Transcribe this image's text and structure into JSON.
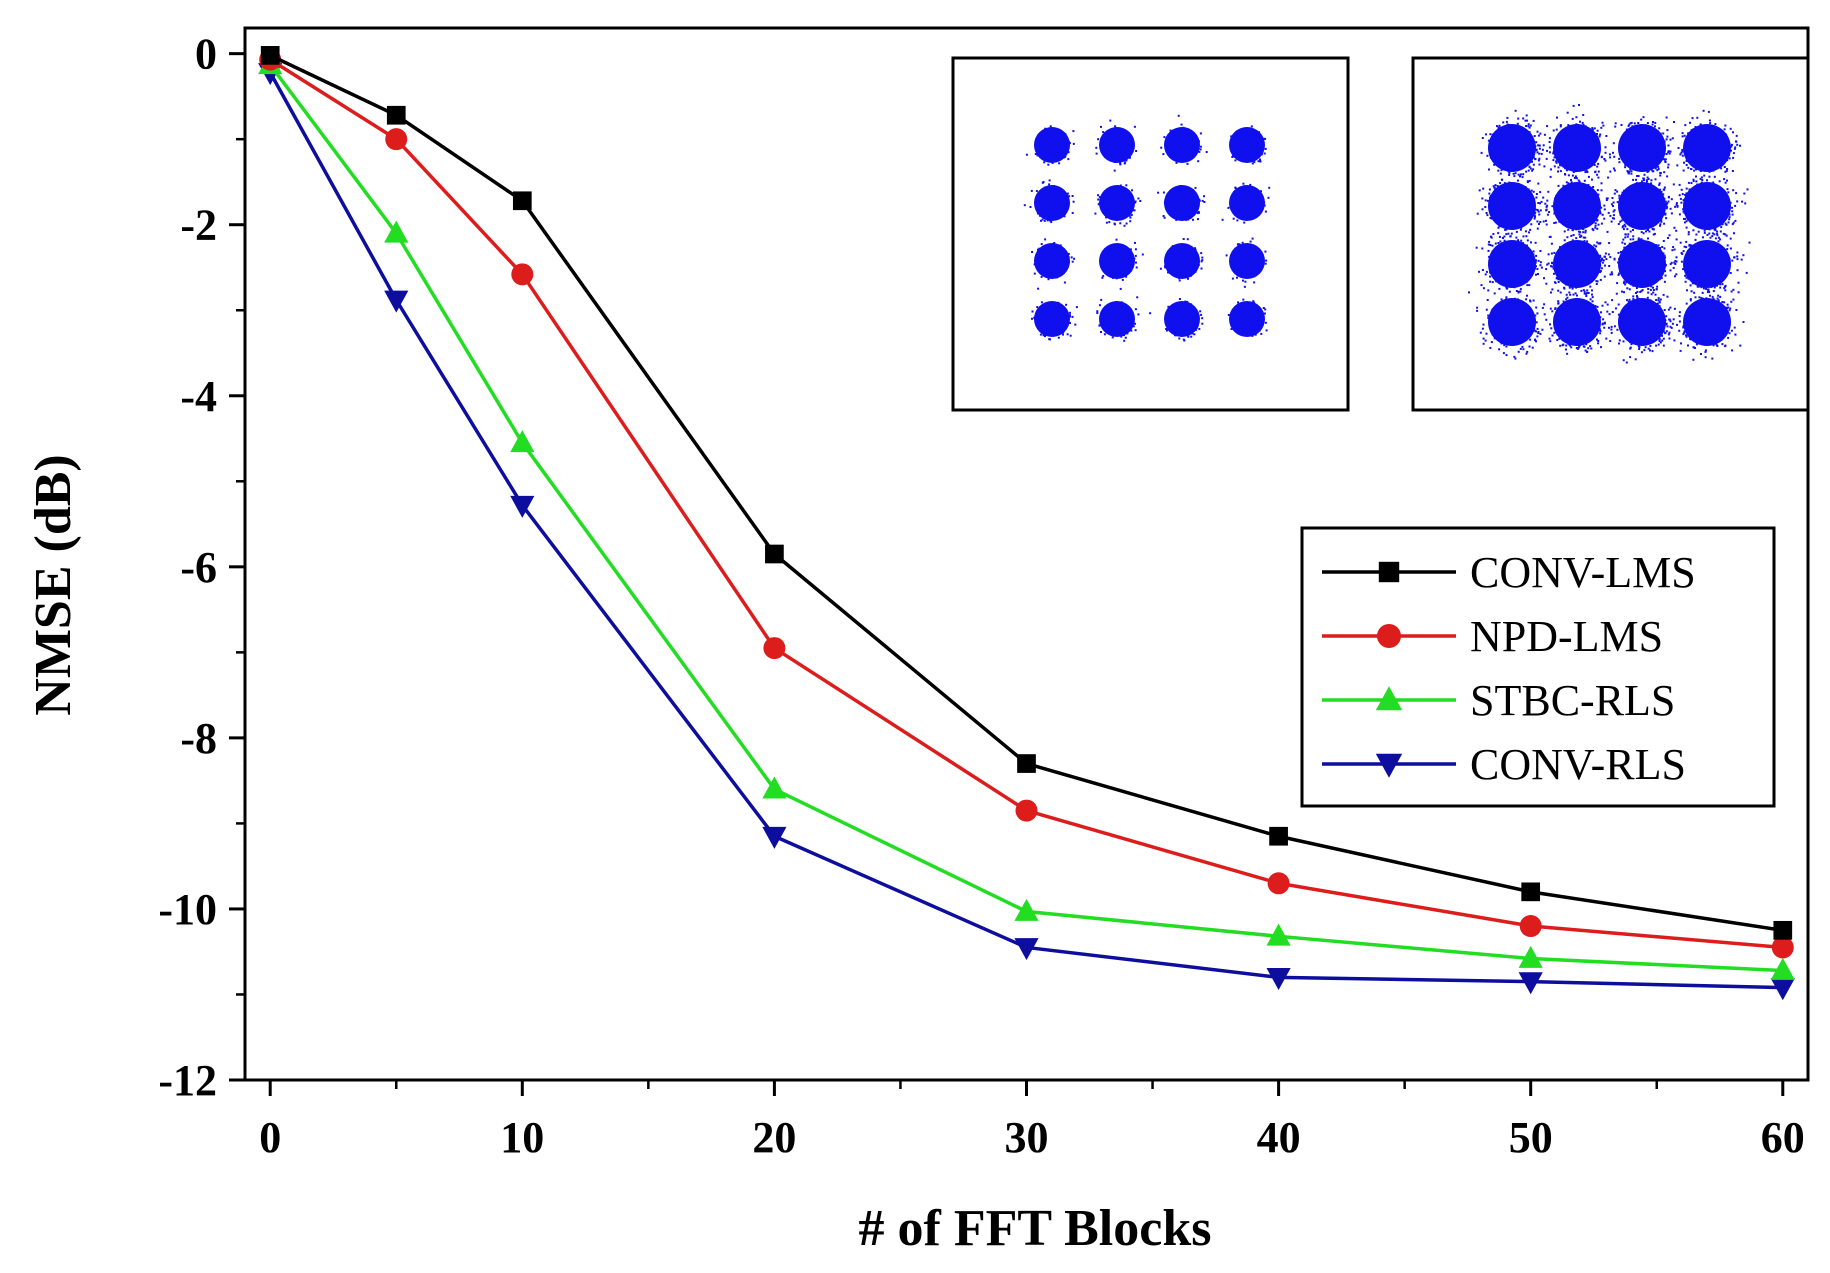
{
  "chart_data": {
    "type": "line",
    "title": "",
    "xlabel": "# of FFT Blocks",
    "ylabel": "NMSE (dB)",
    "xlim": [
      -1,
      61
    ],
    "ylim": [
      -12,
      0.3
    ],
    "x": [
      0,
      5,
      10,
      20,
      30,
      40,
      50,
      60
    ],
    "x_ticks": [
      0,
      10,
      20,
      30,
      40,
      50,
      60
    ],
    "x_ticks_minor": [
      5,
      15,
      25,
      35,
      45,
      55
    ],
    "y_ticks": [
      0,
      -2,
      -4,
      -6,
      -8,
      -10,
      -12
    ],
    "y_ticks_minor": [
      -1,
      -3,
      -5,
      -7,
      -9,
      -11
    ],
    "legend_position": "right",
    "series": [
      {
        "name": "CONV-LMS",
        "color": "#000000",
        "marker": "square",
        "values": [
          -0.02,
          -0.72,
          -1.72,
          -5.85,
          -8.3,
          -9.15,
          -9.8,
          -10.25
        ]
      },
      {
        "name": "NPD-LMS",
        "color": "#dd1c1c",
        "marker": "circle",
        "values": [
          -0.07,
          -1.0,
          -2.58,
          -6.95,
          -8.85,
          -9.7,
          -10.2,
          -10.45
        ]
      },
      {
        "name": "STBC-RLS",
        "color": "#22dd22",
        "marker": "triangle-up",
        "values": [
          -0.13,
          -2.1,
          -4.55,
          -8.6,
          -10.03,
          -10.32,
          -10.58,
          -10.72
        ]
      },
      {
        "name": "CONV-RLS",
        "color": "#0d0d9e",
        "marker": "triangle-down",
        "values": [
          -0.22,
          -2.88,
          -5.28,
          -9.15,
          -10.45,
          -10.8,
          -10.85,
          -10.92
        ]
      }
    ],
    "insets": [
      {
        "name": "constellation-clean",
        "grid": 4,
        "spread": "tight",
        "color": "#1010ee"
      },
      {
        "name": "constellation-noisy",
        "grid": 4,
        "spread": "wide",
        "color": "#1010ee"
      }
    ]
  }
}
